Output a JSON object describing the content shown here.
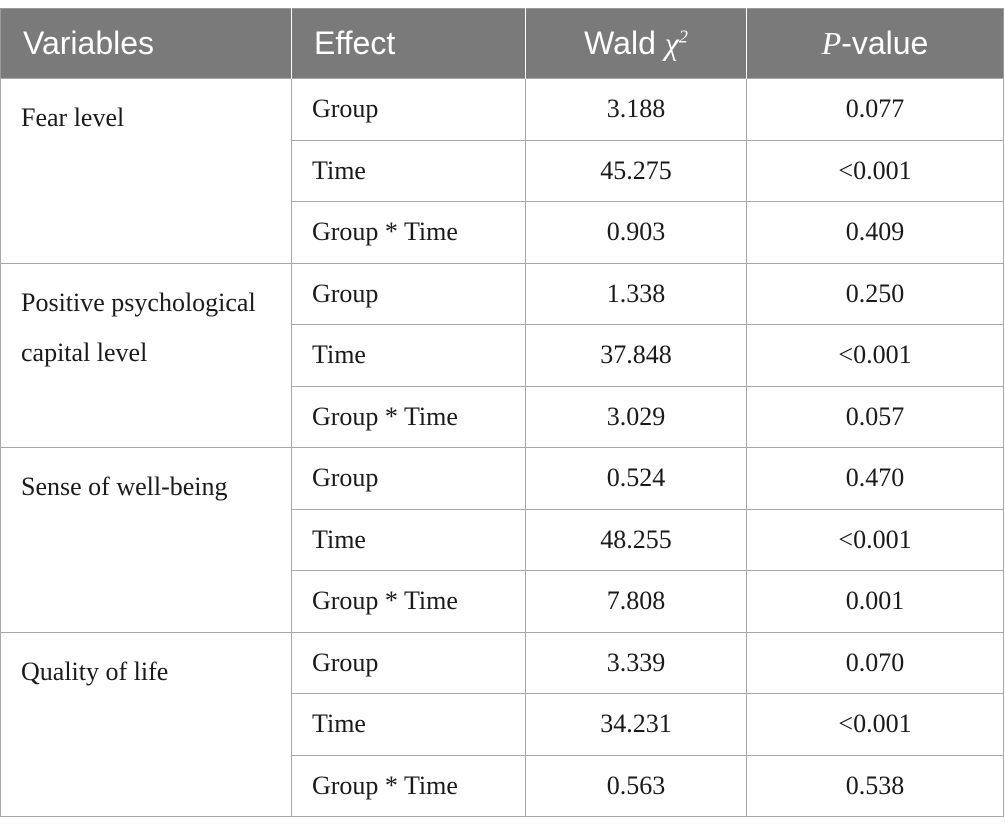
{
  "table": {
    "headers": {
      "variables": "Variables",
      "effect": "Effect",
      "wald_prefix": "Wald ",
      "wald_symbol": "χ",
      "wald_sup": "2",
      "p_italic": "P",
      "p_rest": "-value"
    },
    "groups": [
      {
        "variable": "Fear level",
        "rows": [
          {
            "effect": "Group",
            "wald": "3.188",
            "p": "0.077"
          },
          {
            "effect": "Time",
            "wald": "45.275",
            "p": "<0.001"
          },
          {
            "effect": "Group * Time",
            "wald": "0.903",
            "p": "0.409"
          }
        ]
      },
      {
        "variable": "Positive psychological capital level",
        "rows": [
          {
            "effect": "Group",
            "wald": "1.338",
            "p": "0.250"
          },
          {
            "effect": "Time",
            "wald": "37.848",
            "p": "<0.001"
          },
          {
            "effect": "Group * Time",
            "wald": "3.029",
            "p": "0.057"
          }
        ]
      },
      {
        "variable": "Sense of well-being",
        "rows": [
          {
            "effect": "Group",
            "wald": "0.524",
            "p": "0.470"
          },
          {
            "effect": "Time",
            "wald": "48.255",
            "p": "<0.001"
          },
          {
            "effect": "Group * Time",
            "wald": "7.808",
            "p": "0.001"
          }
        ]
      },
      {
        "variable": "Quality of life",
        "rows": [
          {
            "effect": "Group",
            "wald": "3.339",
            "p": "0.070"
          },
          {
            "effect": "Time",
            "wald": "34.231",
            "p": "<0.001"
          },
          {
            "effect": "Group * Time",
            "wald": "0.563",
            "p": "0.538"
          }
        ]
      }
    ]
  }
}
